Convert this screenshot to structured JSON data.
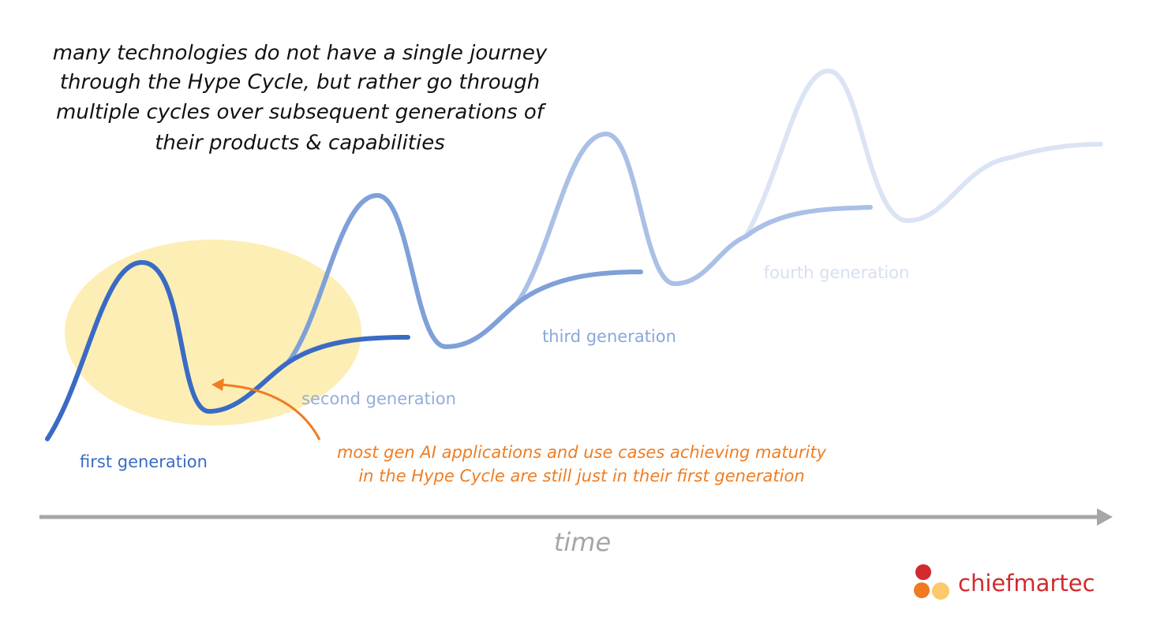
{
  "header": {
    "title_lines": [
      "many technologies do not have a single journey",
      "through the Hype Cycle, but rather go through",
      "multiple cycles over subsequent generations of",
      "their products & capabilities"
    ]
  },
  "generations": [
    "first generation",
    "second generation",
    "third generation",
    "fourth generation"
  ],
  "annotation": {
    "lines": [
      "most gen AI applications and use cases achieving maturity",
      "in the Hype Cycle are still just in their first generation"
    ]
  },
  "axis": {
    "label": "time"
  },
  "logo": {
    "text": "chiefmartec"
  }
}
